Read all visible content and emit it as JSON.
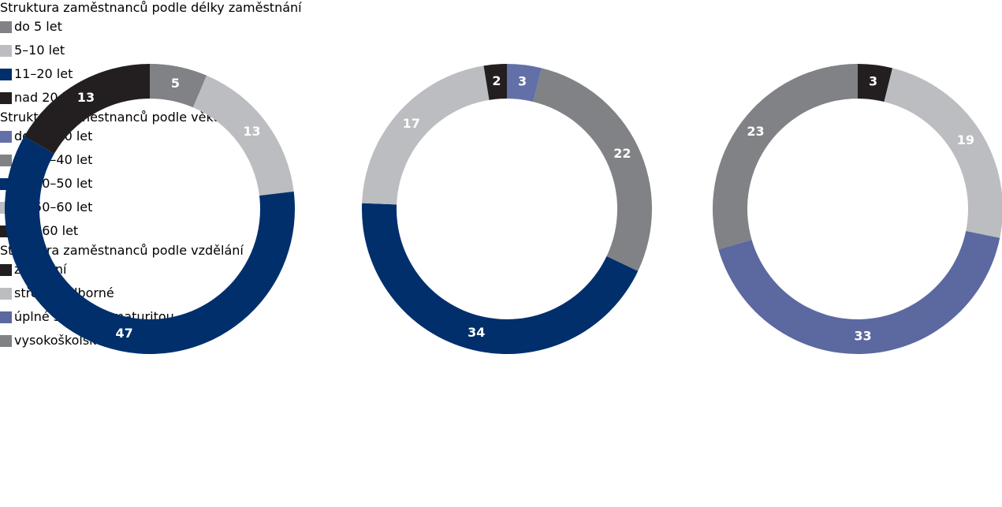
{
  "chart_data": [
    {
      "type": "donut",
      "title": "Struktura zaměstnanců podle délky zaměstnání",
      "categories": [
        "do 5 let",
        "5–10 let",
        "11–20 let",
        "nad 20 let"
      ],
      "values": [
        5,
        13,
        47,
        13
      ],
      "colors": [
        "#808285",
        "#bcbdc0",
        "#002f6c",
        "#231f20"
      ]
    },
    {
      "type": "donut",
      "title": "Struktura zaměstnanců podle věku",
      "categories": [
        "do 20–30 let",
        "do 30–40 let",
        "do 40–50 let",
        "do 50–60 let",
        "nad 60 let"
      ],
      "values": [
        3,
        22,
        34,
        17,
        2
      ],
      "colors": [
        "#6370a8",
        "#808285",
        "#002f6c",
        "#bcbdc0",
        "#231f20"
      ]
    },
    {
      "type": "donut",
      "title": "Struktura zaměstnanců podle vzdělání",
      "categories": [
        "základní",
        "střední odborné",
        "úplné střední s maturitou",
        "vysokoškolské"
      ],
      "values": [
        3,
        19,
        33,
        23
      ],
      "colors": [
        "#231f20",
        "#bcbdc0",
        "#5c68a0",
        "#808285"
      ]
    }
  ]
}
